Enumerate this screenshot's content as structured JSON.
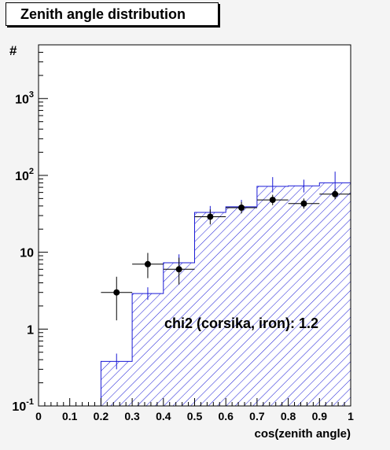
{
  "chart_data": {
    "type": "histogram",
    "title": "Zenith angle distribution",
    "xlabel": "cos(zenith angle)",
    "ylabel": "#",
    "xlim": [
      0,
      1
    ],
    "ylim": [
      0.1,
      5000
    ],
    "y_scale": "log",
    "x_ticks": [
      "0",
      "0.1",
      "0.2",
      "0.3",
      "0.4",
      "0.5",
      "0.6",
      "0.7",
      "0.8",
      "0.9",
      "1"
    ],
    "y_ticks": [
      {
        "base": "10",
        "exp": "-1",
        "value": 0.1
      },
      {
        "base": "1",
        "exp": "",
        "value": 1
      },
      {
        "base": "10",
        "exp": "",
        "value": 10
      },
      {
        "base": "10",
        "exp": "2",
        "value": 100
      },
      {
        "base": "10",
        "exp": "3",
        "value": 1000
      }
    ],
    "series": [
      {
        "kind": "simulation-histogram",
        "color": "#1a1ad6",
        "bins": [
          {
            "x0": 0.2,
            "x1": 0.3,
            "y": 0.38,
            "err": [
              0.3,
              0.48
            ]
          },
          {
            "x0": 0.3,
            "x1": 0.4,
            "y": 2.9,
            "err": [
              2.4,
              3.5
            ]
          },
          {
            "x0": 0.4,
            "x1": 0.5,
            "y": 7.3,
            "err": [
              5.8,
              9.4
            ]
          },
          {
            "x0": 0.5,
            "x1": 0.6,
            "y": 33,
            "err": [
              28,
              40
            ]
          },
          {
            "x0": 0.6,
            "x1": 0.7,
            "y": 39,
            "err": [
              33,
              48
            ]
          },
          {
            "x0": 0.7,
            "x1": 0.8,
            "y": 72,
            "err": [
              60,
              95
            ]
          },
          {
            "x0": 0.8,
            "x1": 0.9,
            "y": 73,
            "err": [
              60,
              88
            ]
          },
          {
            "x0": 0.9,
            "x1": 1.0,
            "y": 80,
            "err": [
              64,
              112
            ]
          }
        ]
      },
      {
        "kind": "data-points",
        "color": "#000000",
        "points": [
          {
            "x": 0.25,
            "y": 3.0,
            "err": [
              1.3,
              4.8
            ]
          },
          {
            "x": 0.35,
            "y": 7.0,
            "err": [
              4.6,
              9.8
            ]
          },
          {
            "x": 0.45,
            "y": 6.0,
            "err": [
              3.8,
              8.5
            ]
          },
          {
            "x": 0.55,
            "y": 29,
            "err": [
              23,
              36
            ]
          },
          {
            "x": 0.65,
            "y": 38,
            "err": [
              32,
              45
            ]
          },
          {
            "x": 0.75,
            "y": 48,
            "err": [
              41,
              56
            ]
          },
          {
            "x": 0.85,
            "y": 43,
            "err": [
              37,
              50
            ]
          },
          {
            "x": 0.95,
            "y": 57,
            "err": [
              49,
              66
            ]
          }
        ]
      }
    ],
    "annotation": "chi2 (corsika, iron): 1.2"
  }
}
